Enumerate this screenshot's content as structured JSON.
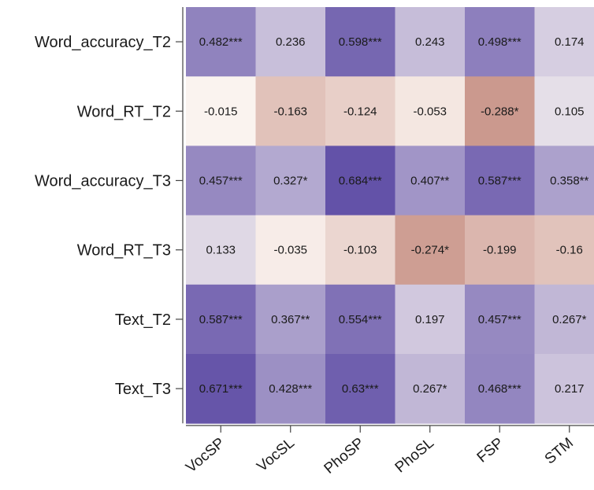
{
  "chart_data": {
    "type": "heatmap",
    "rows": [
      "Word_accuracy_T2",
      "Word_RT_T2",
      "Word_accuracy_T3",
      "Word_RT_T3",
      "Text_T2",
      "Text_T3"
    ],
    "columns": [
      "VocSP",
      "VocSL",
      "PhoSP",
      "PhoSL",
      "FSP",
      "STM"
    ],
    "values": [
      [
        0.482,
        0.236,
        0.598,
        0.243,
        0.498,
        0.174
      ],
      [
        -0.015,
        -0.163,
        -0.124,
        -0.053,
        -0.288,
        0.105
      ],
      [
        0.457,
        0.327,
        0.684,
        0.407,
        0.587,
        0.358
      ],
      [
        0.133,
        -0.035,
        -0.103,
        -0.274,
        -0.199,
        -0.16
      ],
      [
        0.587,
        0.367,
        0.554,
        0.197,
        0.457,
        0.267
      ],
      [
        0.671,
        0.428,
        0.63,
        0.267,
        0.468,
        0.217
      ]
    ],
    "labels": [
      [
        "0.482***",
        "0.236",
        "0.598***",
        "0.243",
        "0.498***",
        "0.174"
      ],
      [
        "-0.015",
        "-0.163",
        "-0.124",
        "-0.053",
        "-0.288*",
        "0.105"
      ],
      [
        "0.457***",
        "0.327*",
        "0.684***",
        "0.407**",
        "0.587***",
        "0.358**"
      ],
      [
        "0.133",
        "-0.035",
        "-0.103",
        "-0.274*",
        "-0.199",
        "-0.16"
      ],
      [
        "0.587***",
        "0.367**",
        "0.554***",
        "0.197",
        "0.457***",
        "0.267*"
      ],
      [
        "0.671***",
        "0.428***",
        "0.63***",
        "0.267*",
        "0.468***",
        "0.217"
      ]
    ],
    "color_scale": {
      "negative_color": "#c9958a",
      "zero_color": "#fdf8f4",
      "positive_color": "#5f4ea6",
      "min": -0.3,
      "max": 0.7
    },
    "grid": false
  }
}
